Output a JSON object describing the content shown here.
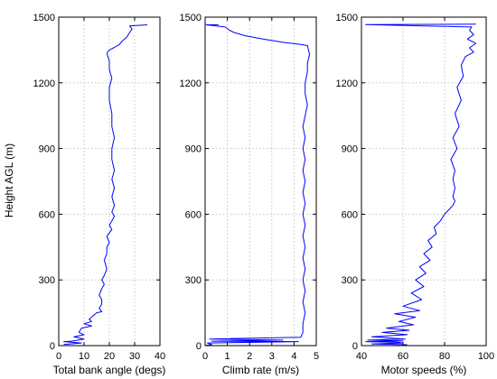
{
  "figure": {
    "background": "#ffffff",
    "series_color": "#0000ff"
  },
  "chart_data": [
    {
      "type": "line",
      "xlabel": "Total bank angle (degs)",
      "ylabel": "Height AGL (m)",
      "xlim": [
        0,
        40
      ],
      "ylim": [
        0,
        1500
      ],
      "xticks": [
        0,
        10,
        20,
        30,
        40
      ],
      "yticks": [
        0,
        300,
        600,
        900,
        1200,
        1500
      ],
      "grid": true,
      "series": [
        {
          "color": "#0000ff",
          "x": [
            35,
            28,
            29,
            28,
            27,
            25,
            24,
            22,
            20,
            19,
            20,
            20,
            21,
            20,
            20,
            21,
            21,
            22,
            21,
            21,
            22,
            21,
            22,
            21,
            22,
            21,
            22,
            21,
            20,
            21,
            19,
            20,
            19,
            19,
            18,
            19,
            18,
            17,
            18,
            17,
            16,
            17,
            17,
            16,
            17,
            15,
            14,
            12,
            13,
            10,
            13,
            9,
            8,
            10,
            6,
            10,
            5,
            2,
            9,
            2
          ],
          "y": [
            1465,
            1460,
            1445,
            1430,
            1410,
            1390,
            1375,
            1362,
            1350,
            1335,
            1300,
            1260,
            1220,
            1180,
            1120,
            1060,
            1000,
            950,
            900,
            850,
            800,
            760,
            720,
            680,
            640,
            610,
            590,
            570,
            550,
            530,
            500,
            470,
            450,
            420,
            390,
            350,
            320,
            300,
            280,
            260,
            230,
            210,
            190,
            170,
            155,
            150,
            140,
            120,
            110,
            100,
            90,
            80,
            60,
            50,
            40,
            30,
            20,
            18,
            12,
            5
          ]
        }
      ]
    },
    {
      "type": "line",
      "xlabel": "Climb rate (m/s)",
      "xlim": [
        0,
        5
      ],
      "ylim": [
        0,
        1500
      ],
      "xticks": [
        0,
        1,
        2,
        3,
        4,
        5
      ],
      "yticks": [
        0,
        300,
        600,
        900,
        1200,
        1500
      ],
      "grid": true,
      "series": [
        {
          "color": "#0000ff",
          "x": [
            0.6,
            0.05,
            0.9,
            1.1,
            1.3,
            1.8,
            2.6,
            3.5,
            4.3,
            4.6,
            4.7,
            4.6,
            4.6,
            4.5,
            4.5,
            4.6,
            4.5,
            4.4,
            4.5,
            4.4,
            4.5,
            4.4,
            4.5,
            4.4,
            4.5,
            4.4,
            4.5,
            4.4,
            4.5,
            4.4,
            4.5,
            4.4,
            4.5,
            4.4,
            4.5,
            4.4,
            4.4,
            4.3,
            0.2,
            3.5,
            0.3,
            4.2,
            0.1,
            0.3,
            0.0
          ],
          "y": [
            1465,
            1465,
            1455,
            1440,
            1430,
            1415,
            1400,
            1385,
            1375,
            1370,
            1330,
            1290,
            1250,
            1200,
            1150,
            1100,
            1050,
            1000,
            950,
            900,
            850,
            800,
            750,
            700,
            650,
            600,
            550,
            500,
            450,
            400,
            350,
            300,
            250,
            200,
            150,
            100,
            60,
            38,
            30,
            25,
            20,
            18,
            12,
            5,
            0
          ]
        }
      ]
    },
    {
      "type": "line",
      "xlabel": "Motor speeds (%)",
      "xlim": [
        40,
        100
      ],
      "ylim": [
        0,
        1500
      ],
      "xticks": [
        40,
        60,
        80,
        100
      ],
      "yticks": [
        0,
        300,
        600,
        900,
        1200,
        1500
      ],
      "grid": true,
      "series": [
        {
          "color": "#0000ff",
          "x": [
            95,
            42,
            93,
            92,
            94,
            91,
            95,
            92,
            94,
            90,
            88,
            89,
            86,
            88,
            85,
            87,
            84,
            86,
            83,
            85,
            84,
            85,
            84,
            85,
            84,
            82,
            80,
            78,
            75,
            76,
            72,
            74,
            70,
            73,
            68,
            71,
            66,
            70,
            64,
            69,
            60,
            68,
            56,
            66,
            58,
            65,
            52,
            63,
            50,
            62,
            45,
            61,
            43,
            60,
            55,
            42,
            58,
            60,
            45,
            62
          ],
          "y": [
            1468,
            1466,
            1455,
            1440,
            1420,
            1400,
            1380,
            1360,
            1340,
            1320,
            1280,
            1230,
            1180,
            1120,
            1060,
            1000,
            950,
            900,
            850,
            800,
            760,
            720,
            680,
            660,
            640,
            620,
            600,
            570,
            540,
            510,
            480,
            450,
            420,
            390,
            360,
            330,
            300,
            270,
            240,
            210,
            180,
            160,
            145,
            130,
            110,
            95,
            80,
            70,
            60,
            50,
            40,
            30,
            25,
            22,
            20,
            18,
            15,
            12,
            8,
            4
          ]
        }
      ]
    }
  ]
}
